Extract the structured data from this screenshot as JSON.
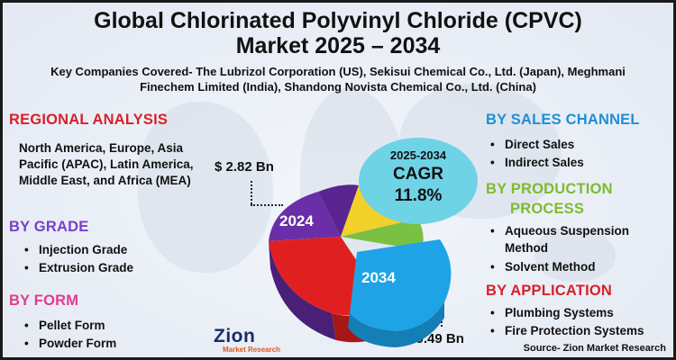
{
  "title_line1": "Global Chlorinated Polyvinyl Chloride (CPVC)",
  "title_line2": "Market 2025 – 2034",
  "subtitle": "Key Companies Covered- The Lubrizol Corporation (US), Sekisui Chemical Co., Ltd. (Japan), Meghmani Finechem Limited (India), Shandong Novista Chemical Co., Ltd. (China)",
  "regional": {
    "heading": "REGIONAL ANALYSIS",
    "text": "North America, Europe, Asia Pacific (APAC), Latin America, Middle East, and Africa (MEA)"
  },
  "grade": {
    "heading": "BY GRADE",
    "items": [
      "Injection Grade",
      "Extrusion Grade"
    ]
  },
  "form": {
    "heading": "BY FORM",
    "items": [
      "Pellet Form",
      "Powder Form"
    ]
  },
  "sales_channel": {
    "heading": "BY SALES CHANNEL",
    "items": [
      "Direct Sales",
      "Indirect Sales"
    ]
  },
  "production": {
    "heading_line1": "BY PRODUCTION",
    "heading_line2": "PROCESS",
    "items": [
      "Aqueous Suspension Method",
      "Solvent Method"
    ]
  },
  "application": {
    "heading": "BY APPLICATION",
    "items": [
      "Plumbing Systems",
      "Fire Protection Systems"
    ]
  },
  "value_2024": "$ 2.82 Bn",
  "value_2034": "$ 9.49 Bn",
  "year_2024": "2024",
  "year_2034": "2034",
  "cagr": {
    "years": "2025-2034",
    "label": "CAGR",
    "value": "11.8%"
  },
  "source": "Source- Zion Market Research",
  "logo": {
    "name": "Zion",
    "sub": "Market Research"
  },
  "colors": {
    "red_heading": "#d8202a",
    "purple_heading": "#7a3fc8",
    "pink_heading": "#e23b8f",
    "blue_heading": "#1e8fd6",
    "green_heading": "#7dbb2f",
    "cagr_bubble": "#6fd3e6",
    "pie_purple": "#6a2fa8",
    "pie_yellow": "#f2d12a",
    "pie_red": "#e02020",
    "pie_green": "#7ac043",
    "pie_blue": "#1ea4e6"
  }
}
